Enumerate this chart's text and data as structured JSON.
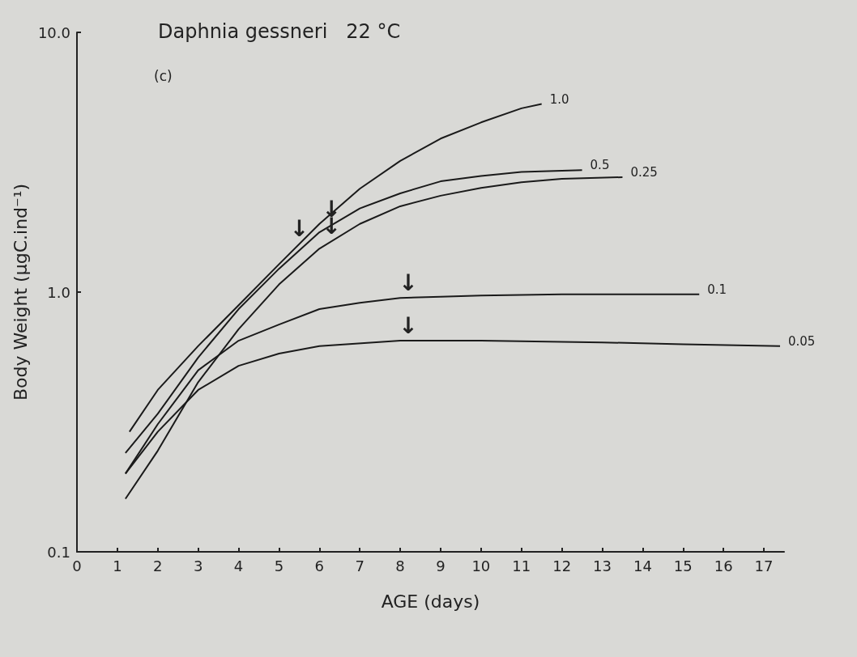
{
  "chart_data": {
    "type": "line",
    "title": "Daphnia gessneri   22 °C",
    "xlabel": "AGE (days)",
    "ylabel": "Body Weight (μgC.ind⁻¹)",
    "log": "y",
    "xlim": [
      0,
      17.5
    ],
    "xticks": [
      0,
      1,
      2,
      3,
      4,
      5,
      6,
      7,
      8,
      9,
      10,
      11,
      12,
      13,
      14,
      15,
      16,
      17
    ],
    "ylim": [
      0.1,
      10
    ],
    "yticks": [
      0.1,
      {
        "value": 1,
        "label": "1.0"
      },
      {
        "value": 10,
        "label": "10.0"
      }
    ],
    "grid": false,
    "legend": false,
    "marker": "none",
    "line_style": "solid",
    "annotations": [
      "(c)",
      {
        "text": "↓",
        "x": 5.5,
        "y": 1.53
      },
      {
        "text": "↓",
        "x": 6.3,
        "y": 1.82
      },
      {
        "text": "↓",
        "x": 6.3,
        "y": 1.57
      },
      {
        "text": "↓",
        "x": 8.2,
        "y": 0.95
      },
      {
        "text": "↓",
        "x": 8.2,
        "y": 0.65
      }
    ],
    "series": [
      {
        "name": "1.0",
        "color": "#1a1a1a",
        "x": [
          1.3,
          2,
          3,
          4,
          5,
          6,
          7,
          8,
          9,
          10,
          11,
          11.5
        ],
        "values": [
          0.29,
          0.42,
          0.62,
          0.89,
          1.28,
          1.83,
          2.5,
          3.2,
          3.9,
          4.5,
          5.1,
          5.3
        ]
      },
      {
        "name": "0.5",
        "color": "#1a1a1a",
        "x": [
          1.2,
          2,
          3,
          4,
          5,
          6,
          7,
          8,
          9,
          10,
          11,
          12.5
        ],
        "values": [
          0.24,
          0.34,
          0.56,
          0.86,
          1.23,
          1.7,
          2.1,
          2.4,
          2.67,
          2.8,
          2.9,
          2.95
        ]
      },
      {
        "name": "0.25",
        "color": "#1a1a1a",
        "x": [
          1.2,
          2,
          3,
          4,
          5,
          6,
          7,
          8,
          9,
          10,
          11,
          12,
          13.5
        ],
        "values": [
          0.16,
          0.245,
          0.45,
          0.72,
          1.07,
          1.47,
          1.83,
          2.14,
          2.35,
          2.52,
          2.65,
          2.73,
          2.77
        ]
      },
      {
        "name": "0.1",
        "color": "#1a1a1a",
        "x": [
          1.2,
          2,
          3,
          4,
          5,
          6,
          7,
          8,
          9,
          10,
          12,
          14,
          15.4
        ],
        "values": [
          0.2,
          0.31,
          0.5,
          0.65,
          0.75,
          0.86,
          0.91,
          0.95,
          0.96,
          0.97,
          0.98,
          0.98,
          0.98
        ]
      },
      {
        "name": "0.05",
        "color": "#1a1a1a",
        "x": [
          1.2,
          2,
          3,
          4,
          5,
          6,
          8,
          10,
          13,
          15,
          17.4
        ],
        "values": [
          0.2,
          0.29,
          0.42,
          0.52,
          0.58,
          0.62,
          0.65,
          0.65,
          0.64,
          0.63,
          0.62
        ]
      }
    ]
  }
}
